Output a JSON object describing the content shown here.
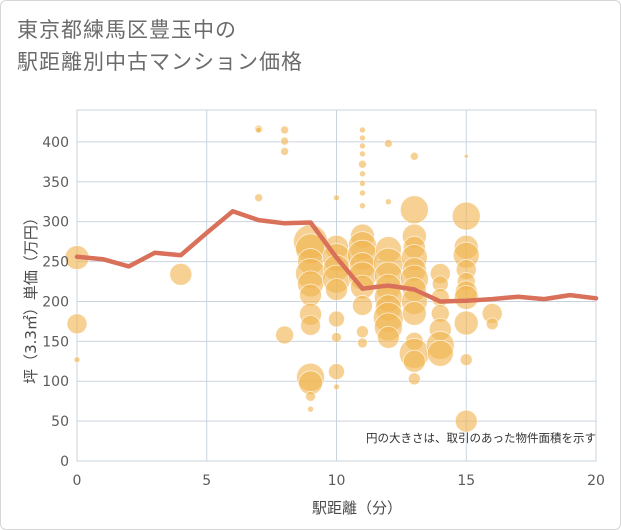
{
  "title_line1": "東京都練馬区豊玉中の",
  "title_line2": "駅距離別中古マンション価格",
  "chart_data": {
    "type": "scatter",
    "title": "東京都練馬区豊玉中の駅距離別中古マンション価格",
    "xlabel": "駅距離（分）",
    "ylabel": "坪（3.3㎡）単価（万円）",
    "xlim": [
      0,
      20
    ],
    "ylim": [
      0,
      440
    ],
    "xticks": [
      0,
      5,
      10,
      15,
      20
    ],
    "yticks": [
      0,
      50,
      100,
      150,
      200,
      250,
      300,
      350,
      400
    ],
    "grid": true,
    "annotation": "円の大きさは、取引のあった物件面積を示す",
    "colors": {
      "bubble": "#f0b450",
      "line": "#d9705a"
    },
    "series": [
      {
        "type": "bubble",
        "points": [
          {
            "x": 0,
            "y": 255,
            "s": 12
          },
          {
            "x": 0,
            "y": 172,
            "s": 10
          },
          {
            "x": 0,
            "y": 127,
            "s": 3
          },
          {
            "x": 4,
            "y": 234,
            "s": 11
          },
          {
            "x": 7,
            "y": 416,
            "s": 4
          },
          {
            "x": 7,
            "y": 415,
            "s": 3
          },
          {
            "x": 7,
            "y": 330,
            "s": 4
          },
          {
            "x": 8,
            "y": 415,
            "s": 4
          },
          {
            "x": 8,
            "y": 401,
            "s": 4
          },
          {
            "x": 8,
            "y": 388,
            "s": 4
          },
          {
            "x": 8,
            "y": 158,
            "s": 9
          },
          {
            "x": 9,
            "y": 275,
            "s": 17
          },
          {
            "x": 9,
            "y": 266,
            "s": 15
          },
          {
            "x": 9,
            "y": 250,
            "s": 13
          },
          {
            "x": 9,
            "y": 235,
            "s": 15
          },
          {
            "x": 9,
            "y": 222,
            "s": 13
          },
          {
            "x": 9,
            "y": 208,
            "s": 11
          },
          {
            "x": 9,
            "y": 184,
            "s": 11
          },
          {
            "x": 9,
            "y": 170,
            "s": 10
          },
          {
            "x": 9,
            "y": 105,
            "s": 14
          },
          {
            "x": 9,
            "y": 98,
            "s": 12
          },
          {
            "x": 9,
            "y": 81,
            "s": 5
          },
          {
            "x": 9,
            "y": 65,
            "s": 3
          },
          {
            "x": 10,
            "y": 330,
            "s": 3
          },
          {
            "x": 10,
            "y": 268,
            "s": 12
          },
          {
            "x": 10,
            "y": 255,
            "s": 14
          },
          {
            "x": 10,
            "y": 242,
            "s": 13
          },
          {
            "x": 10,
            "y": 228,
            "s": 14
          },
          {
            "x": 10,
            "y": 215,
            "s": 11
          },
          {
            "x": 10,
            "y": 178,
            "s": 8
          },
          {
            "x": 10,
            "y": 155,
            "s": 5
          },
          {
            "x": 10,
            "y": 112,
            "s": 8
          },
          {
            "x": 10,
            "y": 93,
            "s": 3
          },
          {
            "x": 11,
            "y": 415,
            "s": 3
          },
          {
            "x": 11,
            "y": 405,
            "s": 3
          },
          {
            "x": 11,
            "y": 395,
            "s": 3
          },
          {
            "x": 11,
            "y": 385,
            "s": 3
          },
          {
            "x": 11,
            "y": 372,
            "s": 4
          },
          {
            "x": 11,
            "y": 360,
            "s": 3
          },
          {
            "x": 11,
            "y": 348,
            "s": 3
          },
          {
            "x": 11,
            "y": 336,
            "s": 3
          },
          {
            "x": 11,
            "y": 320,
            "s": 3
          },
          {
            "x": 11,
            "y": 282,
            "s": 12
          },
          {
            "x": 11,
            "y": 270,
            "s": 14
          },
          {
            "x": 11,
            "y": 258,
            "s": 15
          },
          {
            "x": 11,
            "y": 245,
            "s": 13
          },
          {
            "x": 11,
            "y": 232,
            "s": 14
          },
          {
            "x": 11,
            "y": 218,
            "s": 12
          },
          {
            "x": 11,
            "y": 195,
            "s": 10
          },
          {
            "x": 11,
            "y": 162,
            "s": 6
          },
          {
            "x": 11,
            "y": 148,
            "s": 5
          },
          {
            "x": 12,
            "y": 398,
            "s": 4
          },
          {
            "x": 12,
            "y": 325,
            "s": 3
          },
          {
            "x": 12,
            "y": 265,
            "s": 13
          },
          {
            "x": 12,
            "y": 248,
            "s": 15
          },
          {
            "x": 12,
            "y": 232,
            "s": 14
          },
          {
            "x": 12,
            "y": 218,
            "s": 13
          },
          {
            "x": 12,
            "y": 205,
            "s": 14
          },
          {
            "x": 12,
            "y": 192,
            "s": 13
          },
          {
            "x": 12,
            "y": 180,
            "s": 15
          },
          {
            "x": 12,
            "y": 168,
            "s": 14
          },
          {
            "x": 12,
            "y": 155,
            "s": 11
          },
          {
            "x": 13,
            "y": 382,
            "s": 4
          },
          {
            "x": 13,
            "y": 315,
            "s": 14
          },
          {
            "x": 13,
            "y": 282,
            "s": 12
          },
          {
            "x": 13,
            "y": 268,
            "s": 11
          },
          {
            "x": 13,
            "y": 255,
            "s": 13
          },
          {
            "x": 13,
            "y": 240,
            "s": 12
          },
          {
            "x": 13,
            "y": 228,
            "s": 14
          },
          {
            "x": 13,
            "y": 215,
            "s": 12
          },
          {
            "x": 13,
            "y": 200,
            "s": 13
          },
          {
            "x": 13,
            "y": 185,
            "s": 12
          },
          {
            "x": 13,
            "y": 150,
            "s": 9
          },
          {
            "x": 13,
            "y": 135,
            "s": 15
          },
          {
            "x": 13,
            "y": 125,
            "s": 11
          },
          {
            "x": 13,
            "y": 103,
            "s": 6
          },
          {
            "x": 14,
            "y": 235,
            "s": 10
          },
          {
            "x": 14,
            "y": 222,
            "s": 8
          },
          {
            "x": 14,
            "y": 205,
            "s": 9
          },
          {
            "x": 14,
            "y": 185,
            "s": 9
          },
          {
            "x": 14,
            "y": 165,
            "s": 11
          },
          {
            "x": 14,
            "y": 145,
            "s": 14
          },
          {
            "x": 14,
            "y": 135,
            "s": 13
          },
          {
            "x": 15,
            "y": 382,
            "s": 2
          },
          {
            "x": 15,
            "y": 307,
            "s": 14
          },
          {
            "x": 15,
            "y": 268,
            "s": 12
          },
          {
            "x": 15,
            "y": 258,
            "s": 13
          },
          {
            "x": 15,
            "y": 240,
            "s": 10
          },
          {
            "x": 15,
            "y": 225,
            "s": 9
          },
          {
            "x": 15,
            "y": 212,
            "s": 11
          },
          {
            "x": 15,
            "y": 205,
            "s": 12
          },
          {
            "x": 15,
            "y": 173,
            "s": 12
          },
          {
            "x": 15,
            "y": 127,
            "s": 6
          },
          {
            "x": 15,
            "y": 50,
            "s": 11
          },
          {
            "x": 16,
            "y": 185,
            "s": 10
          },
          {
            "x": 16,
            "y": 172,
            "s": 6
          }
        ]
      },
      {
        "type": "line",
        "x": [
          0,
          1,
          2,
          3,
          4,
          5,
          6,
          7,
          8,
          9,
          10,
          11,
          12,
          13,
          14,
          15,
          16,
          17,
          18,
          19,
          20
        ],
        "y": [
          256,
          253,
          244,
          261,
          258,
          286,
          313,
          302,
          298,
          299,
          255,
          216,
          220,
          215,
          200,
          201,
          203,
          206,
          203,
          208,
          204
        ]
      }
    ]
  }
}
